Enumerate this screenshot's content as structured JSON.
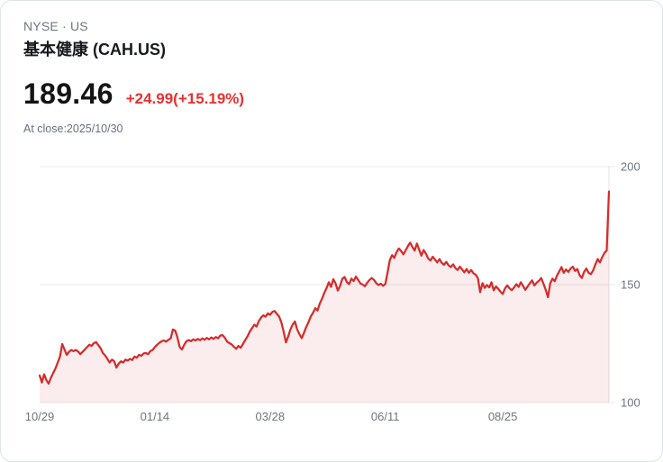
{
  "header": {
    "exchange": "NYSE · US",
    "name": "基本健康 (CAH.US)",
    "price": "189.46",
    "change": "+24.99(+15.19%)",
    "close_info": "At close:2025/10/30"
  },
  "colors": {
    "line": "#d62c2c",
    "fill": "rgba(214,44,44,0.085)",
    "change_text": "#e93030",
    "grid": "#e8e8e8",
    "axis_line": "#e0e0e0",
    "axis_label": "#6e757d"
  },
  "chart_data": {
    "type": "area",
    "title": "",
    "xlabel": "",
    "ylabel": "",
    "x_tick_labels": [
      "10/29",
      "01/14",
      "03/28",
      "06/11",
      "08/25"
    ],
    "x_tick_days": [
      0,
      51,
      102,
      153,
      205
    ],
    "y_ticks": [
      100,
      150,
      200
    ],
    "ylim": [
      100,
      200
    ],
    "grid": true,
    "values": [
      111.5,
      108.5,
      112.0,
      109.5,
      108.0,
      110.5,
      112.5,
      114.5,
      117.0,
      119.5,
      124.8,
      122.5,
      120.2,
      121.5,
      122.3,
      121.8,
      122.3,
      121.7,
      120.5,
      121.5,
      122.5,
      123.5,
      124.5,
      124.0,
      125.2,
      125.6,
      124.3,
      123.0,
      121.0,
      120.0,
      118.5,
      117.0,
      118.2,
      117.5,
      114.8,
      116.5,
      117.5,
      117.0,
      118.2,
      117.8,
      118.5,
      118.0,
      119.5,
      119.0,
      120.2,
      119.8,
      120.8,
      121.0,
      120.5,
      121.8,
      122.3,
      123.5,
      124.5,
      125.3,
      126.0,
      126.3,
      125.8,
      126.6,
      127.2,
      131.0,
      130.5,
      127.5,
      123.5,
      122.5,
      124.5,
      126.0,
      126.5,
      126.0,
      126.8,
      126.3,
      127.0,
      126.4,
      127.2,
      126.6,
      127.4,
      126.8,
      127.6,
      127.0,
      127.8,
      127.2,
      128.4,
      128.6,
      127.4,
      125.8,
      125.2,
      124.6,
      123.6,
      122.8,
      124.0,
      123.2,
      124.8,
      126.5,
      128.0,
      130.0,
      131.5,
      133.0,
      132.2,
      134.5,
      136.0,
      137.0,
      136.4,
      137.8,
      137.2,
      138.4,
      138.8,
      137.6,
      136.5,
      134.0,
      130.0,
      125.5,
      128.0,
      131.0,
      133.0,
      134.4,
      131.0,
      129.0,
      127.3,
      129.5,
      132.0,
      134.0,
      136.5,
      138.0,
      140.0,
      139.0,
      142.0,
      144.0,
      146.5,
      148.5,
      151.0,
      149.0,
      152.3,
      150.5,
      147.5,
      149.5,
      152.5,
      153.2,
      151.0,
      150.2,
      152.5,
      151.5,
      153.4,
      152.0,
      150.5,
      150.0,
      149.3,
      150.8,
      152.0,
      152.8,
      152.0,
      150.6,
      149.8,
      150.4,
      149.5,
      150.2,
      155.0,
      160.3,
      162.5,
      161.3,
      163.8,
      165.3,
      164.2,
      162.8,
      164.5,
      166.3,
      167.8,
      166.0,
      164.4,
      167.4,
      164.8,
      162.3,
      164.6,
      163.0,
      161.0,
      160.2,
      161.8,
      160.6,
      159.4,
      160.8,
      159.2,
      158.4,
      159.6,
      158.2,
      157.4,
      158.6,
      157.0,
      156.2,
      157.6,
      156.4,
      155.2,
      156.6,
      155.0,
      156.2,
      154.8,
      154.2,
      152.8,
      146.8,
      150.6,
      148.6,
      149.8,
      148.8,
      151.0,
      147.6,
      149.2,
      148.2,
      147.0,
      146.0,
      148.4,
      149.6,
      148.4,
      147.6,
      148.8,
      150.2,
      149.0,
      151.0,
      149.4,
      147.8,
      149.2,
      150.6,
      151.8,
      149.6,
      150.8,
      151.6,
      152.8,
      150.4,
      147.8,
      144.6,
      150.5,
      152.5,
      151.4,
      153.8,
      155.6,
      157.4,
      155.0,
      156.4,
      155.4,
      156.8,
      157.6,
      155.8,
      156.6,
      154.0,
      152.8,
      155.4,
      156.8,
      155.0,
      154.4,
      156.0,
      158.6,
      160.8,
      159.4,
      161.6,
      163.4,
      164.47,
      189.46
    ]
  }
}
